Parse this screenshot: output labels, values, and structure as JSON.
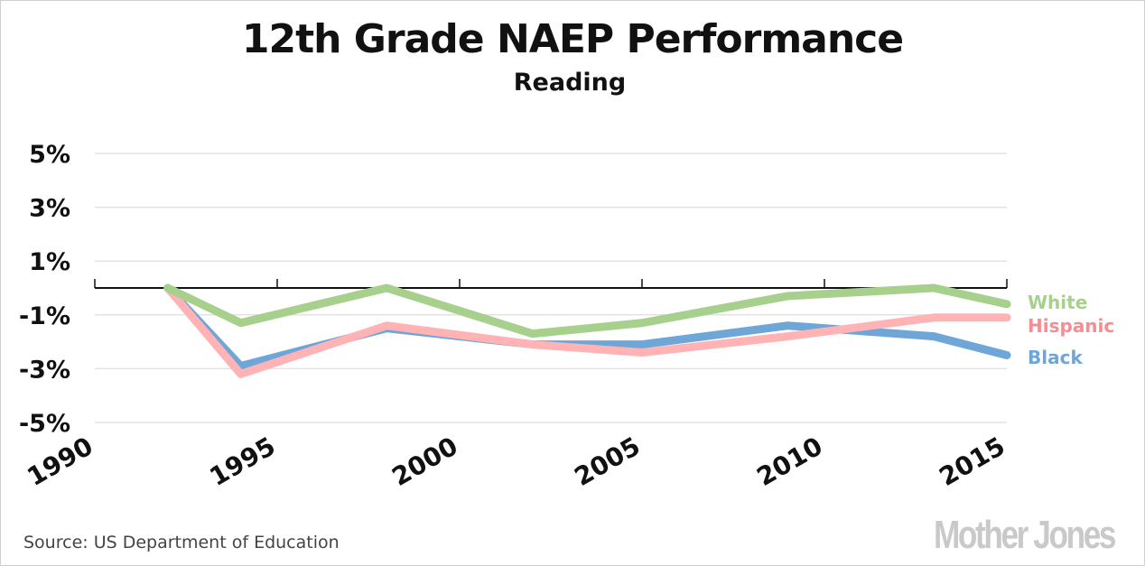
{
  "chart_data": {
    "type": "line",
    "title": "12th Grade NAEP Performance",
    "subtitle": "Reading",
    "xlabel": "",
    "ylabel": "",
    "xlim": [
      1990,
      2015
    ],
    "ylim": [
      -5,
      5
    ],
    "x_ticks": [
      "1990",
      "1995",
      "2000",
      "2005",
      "2010",
      "2015"
    ],
    "y_ticks": [
      {
        "value": 5,
        "label": "5%"
      },
      {
        "value": 3,
        "label": "3%"
      },
      {
        "value": 1,
        "label": "1%"
      },
      {
        "value": -1,
        "label": "-1%"
      },
      {
        "value": -3,
        "label": "-3%"
      },
      {
        "value": -5,
        "label": "-5%"
      }
    ],
    "grid": true,
    "legend_placement": "right, inline labels",
    "x": [
      1992,
      1994,
      1998,
      2002,
      2005,
      2009,
      2013,
      2015
    ],
    "series": [
      {
        "name": "Black",
        "color": "#6fa6d8",
        "values": [
          0,
          -2.9,
          -1.5,
          -2.1,
          -2.1,
          -1.4,
          -1.8,
          -2.5
        ]
      },
      {
        "name": "Hispanic",
        "color": "#ffb3b5",
        "label_color": "#f98c90",
        "values": [
          0,
          -3.2,
          -1.4,
          -2.1,
          -2.4,
          -1.8,
          -1.1,
          -1.1
        ]
      },
      {
        "name": "White",
        "color": "#a6d08c",
        "values": [
          0,
          -1.3,
          0,
          -1.7,
          -1.3,
          -0.3,
          0,
          -0.6
        ]
      }
    ],
    "source": "Source: US Department of Education",
    "logo": "Mother Jones"
  }
}
